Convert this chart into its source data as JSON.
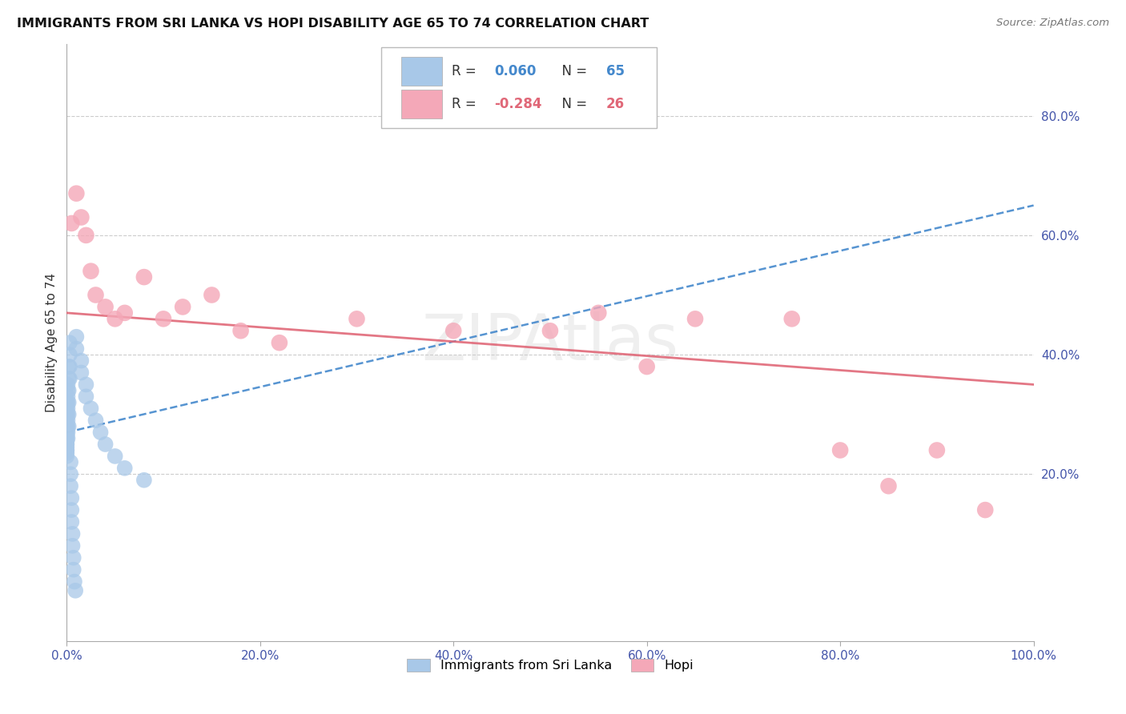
{
  "title": "IMMIGRANTS FROM SRI LANKA VS HOPI DISABILITY AGE 65 TO 74 CORRELATION CHART",
  "source": "Source: ZipAtlas.com",
  "ylabel": "Disability Age 65 to 74",
  "x_tick_values": [
    0,
    20,
    40,
    60,
    80,
    100
  ],
  "y_tick_values": [
    20,
    40,
    60,
    80
  ],
  "xlim": [
    0,
    100
  ],
  "ylim": [
    -8,
    92
  ],
  "legend_labels": [
    "Immigrants from Sri Lanka",
    "Hopi"
  ],
  "r_blue": 0.06,
  "n_blue": 65,
  "r_pink": -0.284,
  "n_pink": 26,
  "blue_color": "#a8c8e8",
  "pink_color": "#f4a8b8",
  "blue_line_color": "#4488cc",
  "pink_line_color": "#e06878",
  "blue_trend_x0": 0,
  "blue_trend_y0": 27,
  "blue_trend_x1": 100,
  "blue_trend_y1": 65,
  "pink_trend_x0": 0,
  "pink_trend_y0": 47,
  "pink_trend_x1": 100,
  "pink_trend_y1": 35,
  "blue_dots_x": [
    0.0,
    0.0,
    0.0,
    0.0,
    0.0,
    0.0,
    0.0,
    0.0,
    0.0,
    0.0,
    0.0,
    0.0,
    0.0,
    0.0,
    0.0,
    0.0,
    0.0,
    0.0,
    0.0,
    0.0,
    0.1,
    0.1,
    0.1,
    0.1,
    0.1,
    0.1,
    0.1,
    0.1,
    0.1,
    0.1,
    0.2,
    0.2,
    0.2,
    0.2,
    0.2,
    0.2,
    0.3,
    0.3,
    0.3,
    0.3,
    0.4,
    0.4,
    0.4,
    0.5,
    0.5,
    0.5,
    0.6,
    0.6,
    0.7,
    0.7,
    0.8,
    0.9,
    1.0,
    1.0,
    1.5,
    1.5,
    2.0,
    2.0,
    2.5,
    3.0,
    3.5,
    4.0,
    5.0,
    6.0,
    8.0
  ],
  "blue_dots_y": [
    28.0,
    27.5,
    27.0,
    26.5,
    26.0,
    25.5,
    25.0,
    24.5,
    24.0,
    23.5,
    32.0,
    31.0,
    30.0,
    29.0,
    28.0,
    27.0,
    26.0,
    25.0,
    24.0,
    23.0,
    35.0,
    34.0,
    33.0,
    32.0,
    31.0,
    30.0,
    29.0,
    28.0,
    27.0,
    26.0,
    38.0,
    36.0,
    34.0,
    32.0,
    30.0,
    28.0,
    42.0,
    40.0,
    38.0,
    36.0,
    22.0,
    20.0,
    18.0,
    16.0,
    14.0,
    12.0,
    10.0,
    8.0,
    6.0,
    4.0,
    2.0,
    0.5,
    43.0,
    41.0,
    39.0,
    37.0,
    35.0,
    33.0,
    31.0,
    29.0,
    27.0,
    25.0,
    23.0,
    21.0,
    19.0
  ],
  "pink_dots_x": [
    0.5,
    1.0,
    1.5,
    2.0,
    2.5,
    3.0,
    4.0,
    5.0,
    6.0,
    8.0,
    10.0,
    12.0,
    15.0,
    18.0,
    22.0,
    30.0,
    40.0,
    50.0,
    55.0,
    60.0,
    65.0,
    75.0,
    80.0,
    85.0,
    90.0,
    95.0
  ],
  "pink_dots_y": [
    62.0,
    67.0,
    63.0,
    60.0,
    54.0,
    50.0,
    48.0,
    46.0,
    47.0,
    53.0,
    46.0,
    48.0,
    50.0,
    44.0,
    42.0,
    46.0,
    44.0,
    44.0,
    47.0,
    38.0,
    46.0,
    46.0,
    24.0,
    18.0,
    24.0,
    14.0
  ]
}
